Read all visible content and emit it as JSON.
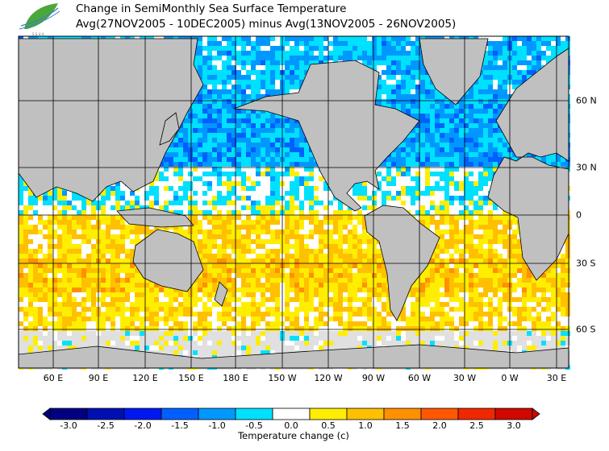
{
  "header": {
    "title": "Change in SemiMonthly Sea Surface Temperature",
    "subtitle": "Avg(27NOV2005 - 10DEC2005) minus Avg(13NOV2005 - 26NOV2005)",
    "logo_text": "SSUA DALL"
  },
  "map": {
    "projection": "mercator",
    "land_color": "#c0c0c0",
    "ice_color": "#e0e0e0",
    "lon_labels": [
      "60 E",
      "90 E",
      "120 E",
      "150 E",
      "180 E",
      "150 W",
      "120 W",
      "90 W",
      "60 W",
      "30 W",
      "0 W",
      "30 E"
    ],
    "lat_labels": [
      "60 N",
      "30 N",
      "0",
      "30 S",
      "60 S"
    ]
  },
  "colorbar": {
    "title": "Temperature change  (c)",
    "labels": [
      "-3.0",
      "-2.5",
      "-2.0",
      "-1.5",
      "-1.0",
      "-0.5",
      "0.0",
      "0.5",
      "1.0",
      "1.5",
      "2.0",
      "2.5",
      "3.0"
    ],
    "colors": [
      "#000080",
      "#0010b0",
      "#0018f0",
      "#0060ff",
      "#0098ff",
      "#00e0ff",
      "#ffffff",
      "#ffee00",
      "#ffc000",
      "#ff9000",
      "#ff5800",
      "#f02800",
      "#d00800"
    ]
  }
}
